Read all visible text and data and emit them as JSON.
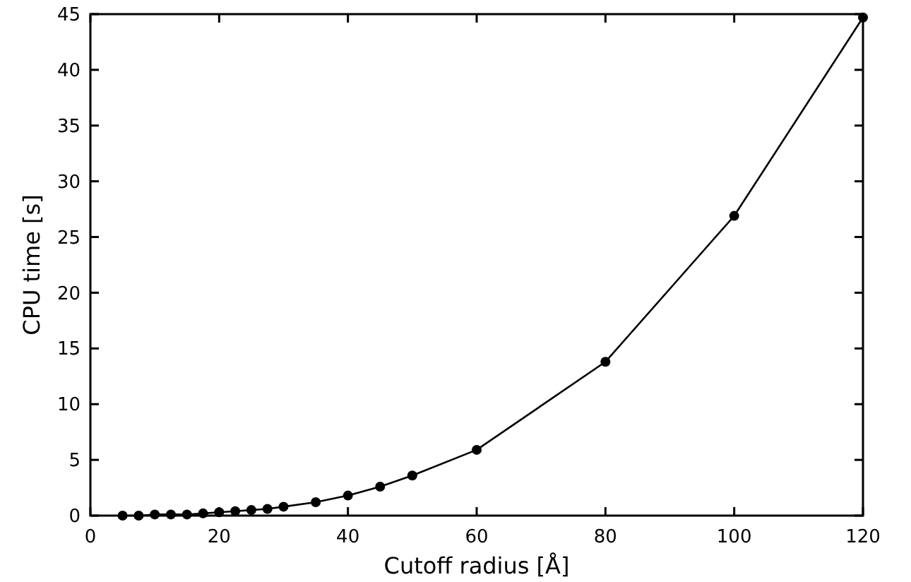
{
  "chart_data": {
    "type": "line",
    "xlabel": "Cutoff radius [Å]",
    "ylabel": "CPU time [s]",
    "x": [
      5,
      7.5,
      10,
      12.5,
      15,
      17.5,
      20,
      22.5,
      25,
      27.5,
      30,
      35,
      40,
      45,
      50,
      60,
      80,
      100,
      120
    ],
    "series": [
      {
        "color": "#000000",
        "values": [
          0,
          0,
          0.1,
          0.1,
          0.1,
          0.2,
          0.3,
          0.4,
          0.5,
          0.6,
          0.8,
          1.2,
          1.8,
          2.6,
          3.6,
          5.9,
          13.8,
          26.9,
          44.7
        ]
      }
    ],
    "xlim": [
      0,
      120
    ],
    "xticks": [
      0,
      20,
      40,
      60,
      80,
      100,
      120
    ],
    "ylim": [
      0,
      45
    ],
    "yticks": [
      0,
      5,
      10,
      15,
      20,
      25,
      30,
      35,
      40,
      45
    ],
    "marker": "circle",
    "line_style": "solid"
  }
}
